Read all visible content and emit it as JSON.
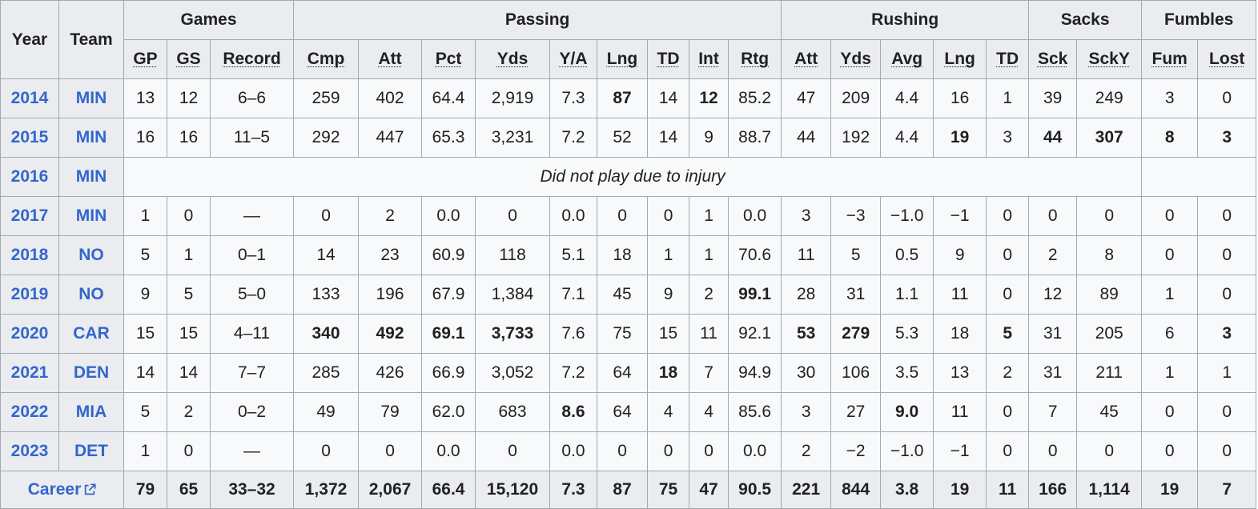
{
  "header": {
    "year": "Year",
    "team": "Team",
    "groups": [
      "Games",
      "Passing",
      "Rushing",
      "Sacks",
      "Fumbles"
    ],
    "cols": [
      "GP",
      "GS",
      "Record",
      "Cmp",
      "Att",
      "Pct",
      "Yds",
      "Y/A",
      "Lng",
      "TD",
      "Int",
      "Rtg",
      "Att",
      "Yds",
      "Avg",
      "Lng",
      "TD",
      "Sck",
      "SckY",
      "Fum",
      "Lost"
    ]
  },
  "rows": [
    {
      "year": "2014",
      "team": "MIN",
      "cells": [
        "13",
        "12",
        "6–6",
        "259",
        "402",
        "64.4",
        "2,919",
        "7.3",
        "87",
        "14",
        "12",
        "85.2",
        "47",
        "209",
        "4.4",
        "16",
        "1",
        "39",
        "249",
        "3",
        "0"
      ],
      "bold": [
        8,
        10
      ]
    },
    {
      "year": "2015",
      "team": "MIN",
      "cells": [
        "16",
        "16",
        "11–5",
        "292",
        "447",
        "65.3",
        "3,231",
        "7.2",
        "52",
        "14",
        "9",
        "88.7",
        "44",
        "192",
        "4.4",
        "19",
        "3",
        "44",
        "307",
        "8",
        "3"
      ],
      "bold": [
        15,
        17,
        18,
        19,
        20
      ]
    },
    {
      "year": "2016",
      "team": "MIN",
      "note": "Did not play due to injury"
    },
    {
      "year": "2017",
      "team": "MIN",
      "cells": [
        "1",
        "0",
        "—",
        "0",
        "2",
        "0.0",
        "0",
        "0.0",
        "0",
        "0",
        "1",
        "0.0",
        "3",
        "−3",
        "−1.0",
        "−1",
        "0",
        "0",
        "0",
        "0",
        "0"
      ],
      "bold": []
    },
    {
      "year": "2018",
      "team": "NO",
      "cells": [
        "5",
        "1",
        "0–1",
        "14",
        "23",
        "60.9",
        "118",
        "5.1",
        "18",
        "1",
        "1",
        "70.6",
        "11",
        "5",
        "0.5",
        "9",
        "0",
        "2",
        "8",
        "0",
        "0"
      ],
      "bold": []
    },
    {
      "year": "2019",
      "team": "NO",
      "cells": [
        "9",
        "5",
        "5–0",
        "133",
        "196",
        "67.9",
        "1,384",
        "7.1",
        "45",
        "9",
        "2",
        "99.1",
        "28",
        "31",
        "1.1",
        "11",
        "0",
        "12",
        "89",
        "1",
        "0"
      ],
      "bold": [
        11
      ]
    },
    {
      "year": "2020",
      "team": "CAR",
      "cells": [
        "15",
        "15",
        "4–11",
        "340",
        "492",
        "69.1",
        "3,733",
        "7.6",
        "75",
        "15",
        "11",
        "92.1",
        "53",
        "279",
        "5.3",
        "18",
        "5",
        "31",
        "205",
        "6",
        "3"
      ],
      "bold": [
        3,
        4,
        5,
        6,
        12,
        13,
        16,
        20
      ]
    },
    {
      "year": "2021",
      "team": "DEN",
      "cells": [
        "14",
        "14",
        "7–7",
        "285",
        "426",
        "66.9",
        "3,052",
        "7.2",
        "64",
        "18",
        "7",
        "94.9",
        "30",
        "106",
        "3.5",
        "13",
        "2",
        "31",
        "211",
        "1",
        "1"
      ],
      "bold": [
        9
      ]
    },
    {
      "year": "2022",
      "team": "MIA",
      "cells": [
        "5",
        "2",
        "0–2",
        "49",
        "79",
        "62.0",
        "683",
        "8.6",
        "64",
        "4",
        "4",
        "85.6",
        "3",
        "27",
        "9.0",
        "11",
        "0",
        "7",
        "45",
        "0",
        "0"
      ],
      "bold": [
        7,
        14
      ]
    },
    {
      "year": "2023",
      "team": "DET",
      "cells": [
        "1",
        "0",
        "—",
        "0",
        "0",
        "0.0",
        "0",
        "0.0",
        "0",
        "0",
        "0",
        "0.0",
        "2",
        "−2",
        "−1.0",
        "−1",
        "0",
        "0",
        "0",
        "0",
        "0"
      ],
      "bold": []
    }
  ],
  "career": {
    "label": "Career",
    "cells": [
      "79",
      "65",
      "33–32",
      "1,372",
      "2,067",
      "66.4",
      "15,120",
      "7.3",
      "87",
      "75",
      "47",
      "90.5",
      "221",
      "844",
      "3.8",
      "19",
      "11",
      "166",
      "1,114",
      "19",
      "7"
    ]
  },
  "colors": {
    "link": "#3366cc",
    "header_bg": "#eaecf0",
    "cell_bg": "#f8f9fa",
    "border": "#a2a9b1"
  },
  "icons": {
    "career_link": "external-link-icon"
  }
}
